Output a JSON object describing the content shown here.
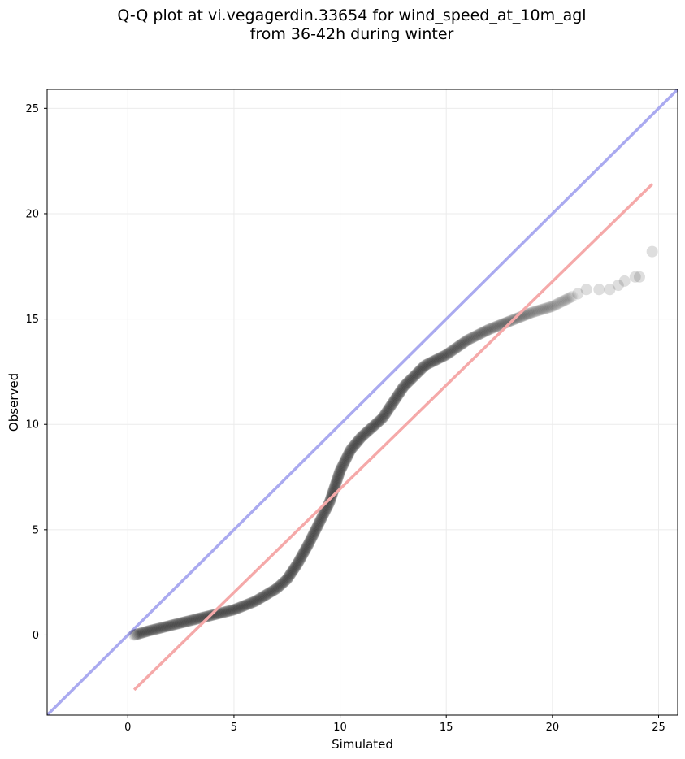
{
  "chart_data": {
    "type": "scatter",
    "title_lines": [
      "Q-Q plot at vi.vegagerdin.33654 for wind_speed_at_10m_agl",
      "from 36-42h during winter"
    ],
    "xlabel": "Simulated",
    "ylabel": "Observed",
    "xlim": [
      -3.8,
      25.9
    ],
    "ylim": [
      -3.8,
      25.9
    ],
    "x_ticks": [
      0,
      5,
      10,
      15,
      20,
      25
    ],
    "y_ticks": [
      0,
      5,
      10,
      15,
      20,
      25
    ],
    "grid": true,
    "colors": {
      "points": "#000000",
      "identity_line": "#aaaaf0",
      "fit_line": "#f5a9a9",
      "grid": "#ebebeb"
    },
    "identity_line": {
      "x": [
        -3.8,
        25.9
      ],
      "y": [
        -3.8,
        25.9
      ]
    },
    "fit_line": {
      "x": [
        0.3,
        24.7
      ],
      "y": [
        -2.6,
        21.4
      ]
    },
    "quantile_curve": {
      "x": [
        0.3,
        1,
        2,
        3,
        4,
        5,
        6,
        7,
        7.5,
        8,
        8.5,
        9,
        9.5,
        10,
        10.5,
        11,
        12,
        13,
        14,
        15,
        16,
        17,
        18,
        19,
        20,
        21
      ],
      "y": [
        0.0,
        0.2,
        0.45,
        0.7,
        0.95,
        1.2,
        1.6,
        2.2,
        2.65,
        3.4,
        4.3,
        5.3,
        6.3,
        7.8,
        8.8,
        9.4,
        10.3,
        11.8,
        12.8,
        13.3,
        14.0,
        14.5,
        14.9,
        15.3,
        15.6,
        16.1
      ]
    },
    "outlier_points": [
      {
        "x": 21.2,
        "y": 16.2
      },
      {
        "x": 21.6,
        "y": 16.4
      },
      {
        "x": 22.2,
        "y": 16.4
      },
      {
        "x": 22.7,
        "y": 16.4
      },
      {
        "x": 23.1,
        "y": 16.6
      },
      {
        "x": 23.4,
        "y": 16.8
      },
      {
        "x": 23.9,
        "y": 17.0
      },
      {
        "x": 24.1,
        "y": 17.0
      },
      {
        "x": 24.7,
        "y": 18.2
      }
    ]
  }
}
